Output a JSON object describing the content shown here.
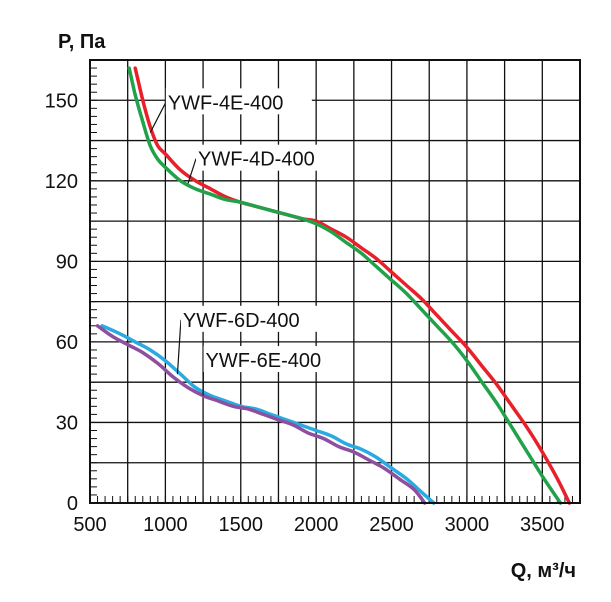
{
  "chart_data": {
    "type": "line",
    "title": "",
    "xlabel": "Q, м³/ч",
    "ylabel": "P, Па",
    "xlim": [
      500,
      3750
    ],
    "ylim": [
      0,
      165
    ],
    "grid": true,
    "x_ticks": [
      500,
      1000,
      1500,
      2000,
      2500,
      3000,
      3500
    ],
    "y_ticks": [
      0,
      30,
      60,
      90,
      120,
      150
    ],
    "series": [
      {
        "name": "YWF-4E-400",
        "color": "#e8202a",
        "x": [
          800,
          850,
          900,
          950,
          1000,
          1100,
          1200,
          1300,
          1400,
          1500,
          1700,
          1900,
          2000,
          2100,
          2200,
          2300,
          2400,
          2500,
          2600,
          2700,
          2800,
          2900,
          3000,
          3100,
          3200,
          3300,
          3400,
          3500,
          3600,
          3680
        ],
        "y": [
          162,
          150,
          140,
          133,
          130,
          124,
          120,
          117,
          114,
          112,
          109,
          106,
          105,
          102,
          99,
          95,
          91,
          86,
          81,
          76,
          70,
          64,
          58,
          51,
          44,
          36,
          28,
          19,
          9,
          0
        ]
      },
      {
        "name": "YWF-4D-400",
        "color": "#21a24a",
        "x": [
          760,
          800,
          850,
          900,
          950,
          1000,
          1100,
          1200,
          1300,
          1400,
          1500,
          1700,
          1900,
          2000,
          2100,
          2200,
          2300,
          2400,
          2500,
          2600,
          2700,
          2800,
          2900,
          3000,
          3100,
          3200,
          3300,
          3400,
          3500,
          3620
        ],
        "y": [
          162,
          152,
          142,
          133,
          128,
          125,
          120,
          117,
          115,
          113,
          112,
          109,
          106,
          104,
          101,
          97,
          93,
          88,
          83,
          78,
          72,
          66,
          60,
          53,
          45,
          37,
          28,
          19,
          10,
          0
        ]
      },
      {
        "name": "YWF-6D-400",
        "color": "#29abe2",
        "x": [
          580,
          700,
          800,
          900,
          1000,
          1100,
          1200,
          1300,
          1400,
          1500,
          1600,
          1700,
          1800,
          1900,
          2000,
          2100,
          2200,
          2300,
          2400,
          2500,
          2600,
          2700,
          2780
        ],
        "y": [
          66,
          63,
          60,
          57,
          53,
          48,
          43,
          40,
          38,
          36,
          35,
          33,
          31,
          29,
          27,
          25,
          22,
          20,
          17,
          13,
          9,
          4,
          0
        ]
      },
      {
        "name": "YWF-6E-400",
        "color": "#8e4f9e",
        "x": [
          550,
          650,
          750,
          850,
          950,
          1050,
          1150,
          1250,
          1350,
          1450,
          1550,
          1650,
          1750,
          1850,
          1950,
          2050,
          2150,
          2250,
          2350,
          2450,
          2550,
          2650,
          2720
        ],
        "y": [
          66,
          62,
          59,
          56,
          52,
          47,
          43,
          40,
          38,
          36,
          35,
          33,
          31,
          29,
          26,
          24,
          21,
          19,
          16,
          13,
          9,
          5,
          0
        ]
      }
    ],
    "labels": [
      {
        "text": "YWF-4E-400",
        "series": 0,
        "anchor_x": 900,
        "anchor_y": 138,
        "text_x": 1600,
        "text_y": 147
      },
      {
        "text": "YWF-4D-400",
        "series": 1,
        "anchor_x": 1150,
        "anchor_y": 119,
        "text_x": 1800,
        "text_y": 126
      },
      {
        "text": "YWF-6D-400",
        "series": 2,
        "anchor_x": 1080,
        "anchor_y": 48,
        "text_x": 1700,
        "text_y": 66
      },
      {
        "text": "YWF-6E-400",
        "series": 3,
        "anchor_x": 1250,
        "anchor_y": 40,
        "text_x": 1850,
        "text_y": 51
      }
    ]
  }
}
